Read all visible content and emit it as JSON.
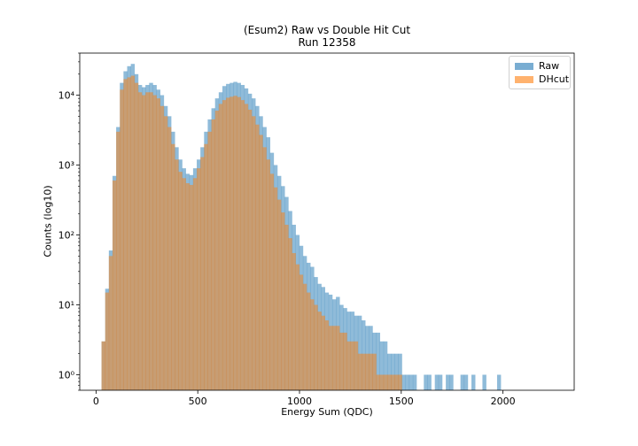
{
  "chart_data": {
    "type": "histogram",
    "title": "(Esum2) Raw vs Double Hit Cut",
    "subtitle": "Run 12358",
    "xlabel": "Energy Sum (QDC)",
    "ylabel": "Counts (log10)",
    "yscale": "log",
    "xlim": [
      -80,
      2350
    ],
    "ylim": [
      0.6,
      40000
    ],
    "grid": false,
    "legend": "top-right",
    "xticks": [
      "0",
      "500",
      "1000",
      "1500",
      "2000"
    ],
    "yticks": [
      "10⁰",
      "10¹",
      "10²",
      "10³",
      "10⁴"
    ],
    "bin_width": 18,
    "bin_start": 27,
    "series": [
      {
        "name": "Raw",
        "color": "#1f77b4",
        "alpha": 0.5,
        "counts": [
          3,
          17,
          60,
          700,
          3500,
          15000,
          22000,
          26000,
          28000,
          20000,
          14000,
          13000,
          14000,
          15000,
          14000,
          12000,
          10000,
          7000,
          5000,
          3000,
          1800,
          1200,
          900,
          750,
          720,
          900,
          1200,
          1800,
          3000,
          4500,
          6500,
          9000,
          11000,
          13500,
          14500,
          15000,
          15500,
          15000,
          14000,
          12500,
          10500,
          9000,
          7000,
          5000,
          3500,
          2500,
          1500,
          1000,
          700,
          500,
          350,
          220,
          140,
          100,
          70,
          50,
          40,
          35,
          25,
          20,
          18,
          15,
          14,
          12,
          13,
          10,
          9,
          8,
          8,
          7,
          7,
          6,
          5,
          5,
          4,
          4,
          3,
          3,
          2,
          2,
          2,
          2,
          1,
          1,
          1,
          1,
          0,
          0,
          1,
          1,
          0,
          1,
          1,
          0,
          1,
          1,
          0,
          0,
          1,
          1,
          0,
          1,
          0,
          0,
          1,
          0,
          0,
          0,
          1,
          0
        ]
      },
      {
        "name": "DHcut",
        "color": "#ff7f0e",
        "alpha": 0.5,
        "counts": [
          3,
          15,
          50,
          600,
          3000,
          12000,
          17000,
          18000,
          19000,
          15000,
          11000,
          10000,
          11000,
          11000,
          10000,
          9000,
          7000,
          5000,
          3500,
          2000,
          1200,
          800,
          650,
          550,
          520,
          650,
          900,
          1300,
          2000,
          3000,
          4500,
          6000,
          7500,
          8500,
          9200,
          9500,
          9800,
          9400,
          8500,
          7500,
          6200,
          5000,
          3800,
          2700,
          1800,
          1200,
          750,
          480,
          320,
          210,
          140,
          90,
          55,
          38,
          27,
          20,
          15,
          12,
          10,
          8,
          7,
          6,
          5,
          5,
          5,
          4,
          4,
          3,
          3,
          3,
          2,
          2,
          2,
          2,
          2,
          1,
          1,
          1,
          1,
          1,
          1,
          1,
          0,
          0,
          0,
          0,
          0,
          0,
          0,
          0,
          0,
          0,
          0,
          0,
          0,
          0,
          0,
          0,
          0,
          0,
          0,
          0,
          0,
          0,
          0,
          0,
          0,
          0,
          0,
          0
        ]
      }
    ]
  }
}
